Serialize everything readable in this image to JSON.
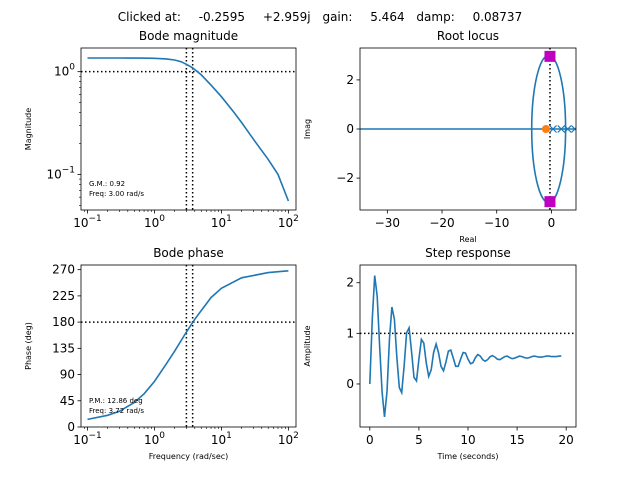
{
  "header": {
    "clicked_label": "Clicked at:",
    "real": "-0.2595",
    "imag": "+2.959j",
    "gain_label": "gain:",
    "gain": "5.464",
    "damp_label": "damp:",
    "damp": "0.08737"
  },
  "colors": {
    "line": "#1f77b4",
    "marker_square": "#bf00bf",
    "zero": "#ff7f0e",
    "axis": "#000000"
  },
  "chart_data": [
    {
      "type": "line",
      "title": "Bode magnitude",
      "ylabel": "Magnitude",
      "xlabel": "",
      "xscale": "log",
      "yscale": "log",
      "xlim": [
        0.08,
        130
      ],
      "ylim": [
        0.045,
        1.7
      ],
      "xticks": [
        {
          "v": 0.1,
          "base": "10",
          "exp": "−1"
        },
        {
          "v": 1,
          "base": "10",
          "exp": "0"
        },
        {
          "v": 10,
          "base": "10",
          "exp": "1"
        },
        {
          "v": 100,
          "base": "10",
          "exp": "2"
        }
      ],
      "yticks": [
        {
          "v": 0.1,
          "base": "10",
          "exp": "−1"
        },
        {
          "v": 1,
          "base": "10",
          "exp": "0"
        }
      ],
      "series": [
        {
          "x": [
            0.1,
            0.3,
            0.6,
            1.0,
            1.5,
            2.0,
            2.5,
            3.0,
            3.7,
            5,
            7,
            10,
            15,
            20,
            30,
            50,
            70,
            100
          ],
          "y": [
            1.36,
            1.36,
            1.355,
            1.35,
            1.33,
            1.3,
            1.25,
            1.18,
            1.09,
            0.93,
            0.74,
            0.57,
            0.41,
            0.32,
            0.22,
            0.14,
            0.1,
            0.055
          ]
        }
      ],
      "hlines": [
        1
      ],
      "vlines": [
        3.0,
        3.72
      ],
      "annotations": [
        "G.M.: 0.92",
        "Freq: 3.00 rad/s"
      ]
    },
    {
      "type": "scatter",
      "title": "Root locus",
      "ylabel": "Imag",
      "xlabel": "Real",
      "xlim": [
        -35,
        4.5
      ],
      "ylim": [
        -3.3,
        3.3
      ],
      "xticks": [
        -30,
        -20,
        -10,
        0
      ],
      "yticks": [
        -2,
        0,
        2
      ],
      "locus_real_axis": [
        -35,
        4.5
      ],
      "ellipse": {
        "center_x": -0.5,
        "center_y": 0,
        "radius_x": 3.1,
        "radius_y": 3.0
      },
      "selected_poles": [
        {
          "x": -0.26,
          "y": 2.96
        },
        {
          "x": -0.26,
          "y": -2.96
        }
      ],
      "zeros": [
        {
          "x": -1,
          "y": 0
        }
      ],
      "poles": [
        {
          "x": 0.3,
          "y": 0
        },
        {
          "x": 1.8,
          "y": 0
        },
        {
          "x": 3.0,
          "y": 0
        },
        {
          "x": 4.3,
          "y": 0
        }
      ],
      "vlines": [
        -0.26
      ]
    },
    {
      "type": "line",
      "title": "Bode phase",
      "ylabel": "Phase (deg)",
      "xlabel": "Frequency (rad/sec)",
      "xscale": "log",
      "xlim": [
        0.08,
        130
      ],
      "ylim": [
        0,
        278
      ],
      "xticks": [
        {
          "v": 0.1,
          "base": "10",
          "exp": "−1"
        },
        {
          "v": 1,
          "base": "10",
          "exp": "0"
        },
        {
          "v": 10,
          "base": "10",
          "exp": "1"
        },
        {
          "v": 100,
          "base": "10",
          "exp": "2"
        }
      ],
      "yticks": [
        0,
        45,
        90,
        135,
        180,
        225,
        270
      ],
      "series": [
        {
          "x": [
            0.1,
            0.2,
            0.3,
            0.5,
            0.7,
            1.0,
            1.5,
            2.0,
            3.0,
            4.0,
            5,
            7,
            10,
            20,
            50,
            100
          ],
          "y": [
            13,
            20,
            27,
            42,
            57,
            78,
            108,
            130,
            163,
            185,
            200,
            222,
            238,
            256,
            265,
            268
          ]
        }
      ],
      "hlines": [
        180
      ],
      "vlines": [
        3.0,
        3.72
      ],
      "annotations": [
        "P.M.: 12.86 deg",
        "Freq: 3.72 rad/s"
      ]
    },
    {
      "type": "line",
      "title": "Step response",
      "ylabel": "Amplitude",
      "xlabel": "Time (seconds)",
      "xlim": [
        -1,
        21
      ],
      "ylim": [
        -0.85,
        2.35
      ],
      "xticks": [
        0,
        5,
        10,
        15,
        20
      ],
      "yticks": [
        0,
        1,
        2
      ],
      "series": [
        {
          "x": [
            0,
            0.25,
            0.5,
            0.75,
            1.0,
            1.25,
            1.5,
            1.75,
            2.0,
            2.25,
            2.5,
            2.75,
            3.0,
            3.25,
            3.5,
            3.75,
            4.0,
            4.25,
            4.5,
            4.75,
            5.0,
            5.25,
            5.5,
            5.75,
            6.0,
            6.25,
            6.5,
            6.75,
            7.0,
            7.25,
            7.5,
            7.75,
            8.0,
            8.25,
            8.5,
            8.75,
            9.0,
            9.25,
            9.5,
            9.75,
            10.0,
            10.25,
            10.5,
            10.75,
            11.0,
            11.25,
            11.5,
            11.75,
            12.0,
            12.25,
            12.5,
            12.75,
            13.0,
            13.25,
            13.5,
            13.75,
            14.0,
            14.25,
            14.5,
            14.75,
            15.0,
            15.25,
            15.5,
            15.75,
            16.0,
            16.25,
            16.5,
            16.75,
            17.0,
            17.25,
            17.5,
            17.75,
            18.0,
            18.25,
            18.5,
            18.75,
            19.0,
            19.25,
            19.5
          ],
          "y": [
            0.0,
            1.29,
            2.14,
            1.73,
            0.76,
            -0.16,
            -0.65,
            -0.15,
            0.9,
            1.52,
            1.28,
            0.54,
            -0.07,
            -0.17,
            0.37,
            1.01,
            1.11,
            0.65,
            0.13,
            0.06,
            0.49,
            0.88,
            0.81,
            0.41,
            0.15,
            0.28,
            0.62,
            0.79,
            0.62,
            0.35,
            0.26,
            0.43,
            0.65,
            0.67,
            0.51,
            0.35,
            0.35,
            0.49,
            0.62,
            0.61,
            0.49,
            0.4,
            0.42,
            0.52,
            0.58,
            0.55,
            0.48,
            0.45,
            0.48,
            0.54,
            0.56,
            0.53,
            0.49,
            0.48,
            0.51,
            0.54,
            0.55,
            0.52,
            0.5,
            0.51,
            0.53,
            0.55,
            0.54,
            0.52,
            0.51,
            0.52,
            0.54,
            0.55,
            0.54,
            0.53,
            0.53,
            0.54,
            0.55,
            0.55,
            0.54,
            0.54,
            0.54,
            0.55,
            0.55
          ]
        }
      ],
      "hlines": [
        1
      ]
    }
  ]
}
